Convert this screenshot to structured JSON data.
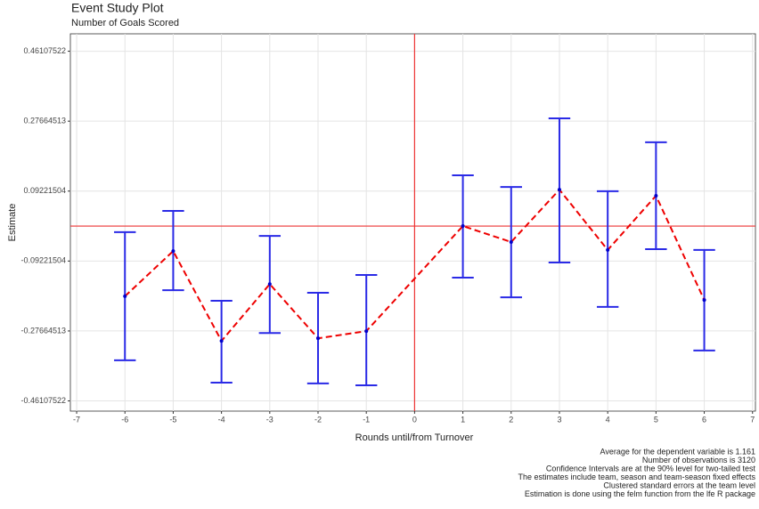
{
  "chart_data": {
    "type": "errorbar",
    "title": "Event Study Plot",
    "subtitle": "Number of Goals Scored",
    "x_label": "Rounds until/from Turnover",
    "y_label": "Estimate",
    "x": [
      -6,
      -5,
      -4,
      -3,
      -2,
      -1,
      1,
      2,
      3,
      4,
      5,
      6
    ],
    "values": [
      -0.185,
      -0.066,
      -0.303,
      -0.153,
      -0.296,
      -0.277,
      0.0,
      -0.042,
      0.096,
      -0.063,
      0.08,
      -0.195
    ],
    "lower": [
      -0.354,
      -0.169,
      -0.413,
      -0.282,
      -0.415,
      -0.42,
      -0.136,
      -0.188,
      -0.096,
      -0.213,
      -0.061,
      -0.328
    ],
    "upper": [
      -0.016,
      0.04,
      -0.197,
      -0.026,
      -0.176,
      -0.129,
      0.134,
      0.103,
      0.284,
      0.092,
      0.221,
      -0.063
    ],
    "point_color": "#0000cc",
    "bar_color": "#2a2ae6",
    "line_color": "#ee0000",
    "reference_color": "#ee3333",
    "reference_x": 0,
    "reference_y": 0,
    "xlim": [
      -7.13,
      7.06
    ],
    "ylim": [
      -0.488,
      0.507
    ],
    "xticks": [
      -7,
      -6,
      -5,
      -4,
      -3,
      -2,
      -1,
      0,
      1,
      2,
      3,
      4,
      5,
      6,
      7
    ],
    "yticks": [
      -0.46107522,
      -0.27664513,
      -0.09221504,
      0.09221504,
      0.27664513,
      0.46107522
    ],
    "grid": true,
    "notes": [
      "Average for the dependent variable is 1.161",
      "Number of observations is 3120",
      "Confidence Intervals are at the 90% level for two-tailed test",
      "The estimates include team, season and team-season fixed effects",
      "Clustered standard errors at the team level",
      "Estimation is done using the felm function from the lfe R package"
    ]
  }
}
